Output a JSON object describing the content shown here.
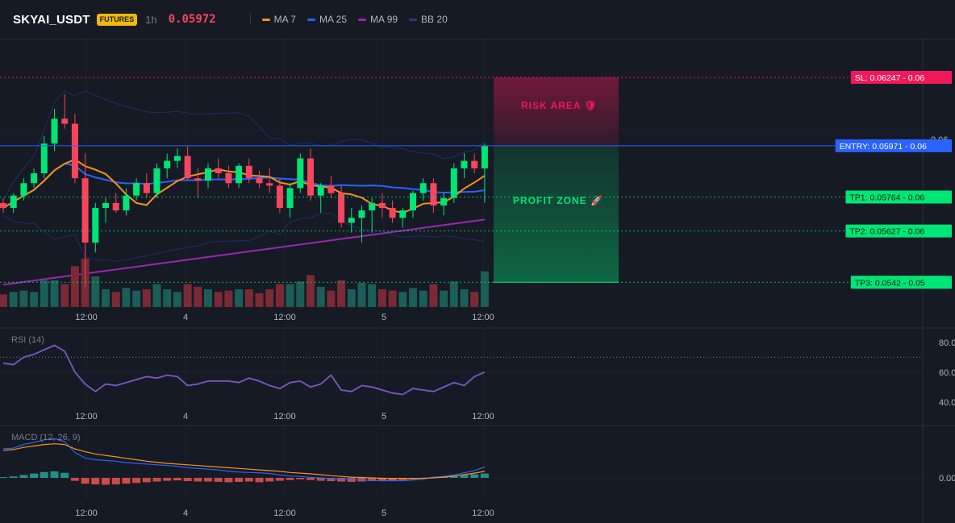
{
  "header": {
    "symbol": "SKYAI_USDT",
    "badge": "FUTURES",
    "timeframe": "1h",
    "last_price": "0.05972",
    "legend": [
      {
        "label": "MA 7",
        "color": "#f7931a"
      },
      {
        "label": "MA 25",
        "color": "#2962ff"
      },
      {
        "label": "MA 99",
        "color": "#9c27b0"
      },
      {
        "label": "BB 20",
        "color": "#283a7a"
      }
    ]
  },
  "colors": {
    "up": "#26a69a",
    "up_bright": "#00e676",
    "down": "#f6465d",
    "ma7": "#f7931a",
    "ma25": "#2962ff",
    "ma99": "#9c27b0",
    "bb": "#1e2e6b",
    "sl": "#f0185a",
    "entry": "#2962ff",
    "tp": "#00e676",
    "rsi": "#7e57c2",
    "macd": "#2962ff",
    "signal": "#f7931a"
  },
  "time_axis": [
    "12:00",
    "4",
    "12:00",
    "5",
    "12:00"
  ],
  "chart_data": [
    {
      "type": "candlestick",
      "title": "SKYAI_USDT 1h",
      "ylim": [
        0.0532,
        0.064
      ],
      "price_axis_labels": [
        "0.06"
      ],
      "candles": [
        [
          0.0574,
          0.0576,
          0.057,
          0.0572
        ],
        [
          0.0572,
          0.0578,
          0.057,
          0.0577
        ],
        [
          0.0577,
          0.0584,
          0.0575,
          0.0582
        ],
        [
          0.0582,
          0.0588,
          0.058,
          0.0586
        ],
        [
          0.0586,
          0.0601,
          0.0584,
          0.0598
        ],
        [
          0.0598,
          0.0612,
          0.0595,
          0.0608
        ],
        [
          0.0608,
          0.0618,
          0.0604,
          0.0606
        ],
        [
          0.0606,
          0.061,
          0.0582,
          0.0584
        ],
        [
          0.0584,
          0.0594,
          0.054,
          0.0558
        ],
        [
          0.0558,
          0.0574,
          0.0554,
          0.0572
        ],
        [
          0.0572,
          0.0576,
          0.0566,
          0.0574
        ],
        [
          0.0574,
          0.0578,
          0.057,
          0.0571
        ],
        [
          0.0571,
          0.058,
          0.0569,
          0.0577
        ],
        [
          0.0577,
          0.0584,
          0.0575,
          0.0582
        ],
        [
          0.0582,
          0.0586,
          0.0576,
          0.0578
        ],
        [
          0.0578,
          0.059,
          0.0576,
          0.0588
        ],
        [
          0.0588,
          0.0594,
          0.0584,
          0.0591
        ],
        [
          0.0591,
          0.0596,
          0.0588,
          0.0593
        ],
        [
          0.0593,
          0.0597,
          0.0583,
          0.0584
        ],
        [
          0.0584,
          0.0588,
          0.0576,
          0.0583
        ],
        [
          0.0583,
          0.059,
          0.058,
          0.0588
        ],
        [
          0.0588,
          0.0592,
          0.0584,
          0.0586
        ],
        [
          0.0586,
          0.0589,
          0.058,
          0.0582
        ],
        [
          0.0582,
          0.059,
          0.058,
          0.0589
        ],
        [
          0.0589,
          0.0592,
          0.0582,
          0.0584
        ],
        [
          0.0584,
          0.0587,
          0.058,
          0.0582
        ],
        [
          0.0582,
          0.0588,
          0.0578,
          0.0581
        ],
        [
          0.0581,
          0.0584,
          0.057,
          0.0572
        ],
        [
          0.0572,
          0.0582,
          0.0568,
          0.058
        ],
        [
          0.058,
          0.0594,
          0.0578,
          0.0592
        ],
        [
          0.0592,
          0.0596,
          0.0575,
          0.0577
        ],
        [
          0.0577,
          0.0582,
          0.057,
          0.0581
        ],
        [
          0.0581,
          0.0585,
          0.0576,
          0.0578
        ],
        [
          0.0578,
          0.0581,
          0.0564,
          0.0566
        ],
        [
          0.0566,
          0.0572,
          0.0562,
          0.0568
        ],
        [
          0.0568,
          0.0573,
          0.0558,
          0.0571
        ],
        [
          0.0571,
          0.0576,
          0.0562,
          0.0574
        ],
        [
          0.0574,
          0.0578,
          0.0568,
          0.0572
        ],
        [
          0.0572,
          0.0575,
          0.0566,
          0.0568
        ],
        [
          0.0568,
          0.0572,
          0.0564,
          0.0571
        ],
        [
          0.0571,
          0.0579,
          0.0568,
          0.0578
        ],
        [
          0.0578,
          0.0584,
          0.0575,
          0.0582
        ],
        [
          0.0582,
          0.0584,
          0.057,
          0.0573
        ],
        [
          0.0573,
          0.0578,
          0.0569,
          0.0576
        ],
        [
          0.0576,
          0.059,
          0.0574,
          0.0588
        ],
        [
          0.0588,
          0.0594,
          0.0584,
          0.0591
        ],
        [
          0.0591,
          0.0594,
          0.0586,
          0.0588
        ],
        [
          0.0588,
          0.0598,
          0.0574,
          0.0597
        ]
      ]
    },
    {
      "type": "line",
      "title": "RSI (14)",
      "ylim": [
        35,
        88
      ],
      "tick_labels": [
        "80.00",
        "60.00",
        "40.00"
      ],
      "overbought_level": 70,
      "values": [
        66,
        65,
        70,
        72,
        75,
        78,
        74,
        60,
        52,
        47,
        52,
        51,
        53,
        55,
        57,
        56,
        58,
        57,
        51,
        52,
        54,
        54,
        54,
        53,
        56,
        54,
        51,
        49,
        53,
        54,
        50,
        52,
        58,
        48,
        47,
        51,
        50,
        48,
        46,
        45,
        49,
        48,
        47,
        50,
        53,
        51,
        57,
        60
      ]
    },
    {
      "type": "bar",
      "title": "MACD (12, 26, 9)",
      "ylim": [
        -0.0006,
        0.0014
      ],
      "tick_labels": [
        "0.00"
      ],
      "histogram": [
        2e-05,
        4e-05,
        8e-05,
        0.00012,
        0.00016,
        0.00018,
        0.00014,
        -8e-05,
        -0.00016,
        -0.00018,
        -0.00019,
        -0.00018,
        -0.00016,
        -0.00014,
        -0.00012,
        -0.0001,
        -8e-05,
        -7e-05,
        -9e-05,
        -0.0001,
        -0.0001,
        -0.00011,
        -0.00012,
        -0.00011,
        -0.0001,
        -0.00012,
        -0.0001,
        -8e-05,
        -6e-05,
        -4e-05,
        -6e-05,
        -8e-05,
        -9e-05,
        -0.0001,
        -0.00011,
        -0.0001,
        -9e-05,
        -8e-05,
        -7e-05,
        -6e-05,
        -4e-05,
        -2e-05,
        2e-05,
        4e-05,
        6e-05,
        8e-05,
        0.0001,
        0.00012
      ],
      "macd_line": [
        0.0008,
        0.00082,
        0.00092,
        0.00098,
        0.00105,
        0.00108,
        0.001,
        0.0007,
        0.00055,
        0.0005,
        0.00048,
        0.00046,
        0.00042,
        0.0004,
        0.00038,
        0.00036,
        0.00034,
        0.00032,
        0.00028,
        0.00026,
        0.00024,
        0.00022,
        0.00018,
        0.00016,
        0.00015,
        0.00014,
        0.00012,
        8e-05,
        5e-05,
        4e-05,
        1e-05,
        0.0,
        -2e-05,
        -4e-05,
        -5e-05,
        -6e-05,
        -7e-05,
        -8e-05,
        -8e-05,
        -8e-05,
        -6e-05,
        -4e-05,
        2e-05,
        4e-05,
        8e-05,
        0.00014,
        0.0002,
        0.0003
      ],
      "signal_line": [
        0.00076,
        0.00078,
        0.00084,
        0.00088,
        0.00092,
        0.00094,
        0.00092,
        0.0008,
        0.00072,
        0.00066,
        0.00062,
        0.00058,
        0.00054,
        0.0005,
        0.00046,
        0.00043,
        0.0004,
        0.00038,
        0.00036,
        0.00034,
        0.00032,
        0.0003,
        0.00028,
        0.00026,
        0.00024,
        0.00022,
        0.0002,
        0.00018,
        0.00015,
        0.00013,
        0.00011,
        9e-05,
        6e-05,
        4e-05,
        2e-05,
        1e-05,
        0.0,
        -1e-05,
        -2e-05,
        -2e-05,
        -2e-05,
        -1e-05,
        0.0,
        2e-05,
        5e-05,
        9e-05,
        0.00013,
        0.00018
      ]
    }
  ],
  "trade": {
    "sl": {
      "label": "SL: 0.06247 - 0.06",
      "price": 0.06247
    },
    "entry": {
      "label": "ENTRY: 0.05971 - 0.06",
      "price": 0.05971
    },
    "tp1": {
      "label": "TP1: 0.05764 - 0.06",
      "price": 0.05764
    },
    "tp2": {
      "label": "TP2: 0.05627 - 0.06",
      "price": 0.05627
    },
    "tp3": {
      "label": "TP3: 0.0542 - 0.05",
      "price": 0.0542
    },
    "risk_label": "RISK AREA 🛡",
    "profit_label": "PROFIT ZONE 🚀"
  }
}
